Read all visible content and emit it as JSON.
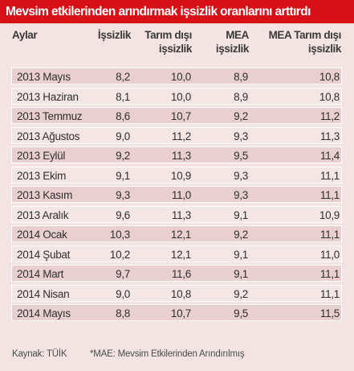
{
  "title": "Mevsim etkilerinden arındırmak işsizlik oranlarını arttırdı",
  "headers": {
    "month": "Aylar",
    "unemployment": [
      "İşsizlik"
    ],
    "nonfarm": [
      "Tarım dışı",
      "işsizlik"
    ],
    "mea": [
      "MEA",
      "işsizlik"
    ],
    "mea_nonfarm": [
      "MEA Tarım dışı",
      "işsizlik"
    ]
  },
  "rows": [
    {
      "month": "2013 Mayıs",
      "unemployment": "8,2",
      "nonfarm": "10,0",
      "mea": "8,9",
      "mea_nonfarm": "10,8"
    },
    {
      "month": "2013 Haziran",
      "unemployment": "8,1",
      "nonfarm": "10,0",
      "mea": "8,9",
      "mea_nonfarm": "10,8"
    },
    {
      "month": "2013 Temmuz",
      "unemployment": "8,6",
      "nonfarm": "10,7",
      "mea": "9,2",
      "mea_nonfarm": "11,2"
    },
    {
      "month": "2013 Ağustos",
      "unemployment": "9,0",
      "nonfarm": "11,2",
      "mea": "9,3",
      "mea_nonfarm": "11,3"
    },
    {
      "month": "2013 Eylül",
      "unemployment": "9,2",
      "nonfarm": "11,3",
      "mea": "9,5",
      "mea_nonfarm": "11,4"
    },
    {
      "month": "2013 Ekim",
      "unemployment": "9,1",
      "nonfarm": "10,9",
      "mea": "9,3",
      "mea_nonfarm": "11,1"
    },
    {
      "month": "2013 Kasım",
      "unemployment": "9,3",
      "nonfarm": "11,0",
      "mea": "9,3",
      "mea_nonfarm": "11,1"
    },
    {
      "month": "2013 Aralık",
      "unemployment": "9,6",
      "nonfarm": "11,3",
      "mea": "9,1",
      "mea_nonfarm": "10,9"
    },
    {
      "month": "2014 Ocak",
      "unemployment": "10,3",
      "nonfarm": "12,1",
      "mea": "9,2",
      "mea_nonfarm": "11,1"
    },
    {
      "month": "2014 Şubat",
      "unemployment": "10,2",
      "nonfarm": "12,1",
      "mea": "9,1",
      "mea_nonfarm": "11,0"
    },
    {
      "month": "2014 Mart",
      "unemployment": "9,7",
      "nonfarm": "11,6",
      "mea": "9,1",
      "mea_nonfarm": "11,1"
    },
    {
      "month": "2014 Nisan",
      "unemployment": "9,0",
      "nonfarm": "10,8",
      "mea": "9,2",
      "mea_nonfarm": "11,1"
    },
    {
      "month": "2014 Mayıs",
      "unemployment": "8,8",
      "nonfarm": "10,7",
      "mea": "9,5",
      "mea_nonfarm": "11,5"
    }
  ],
  "footer": {
    "source": "Kaynak: TÜİK",
    "note": "*MAE: Mevsim Etkilerinden Arındırılmış"
  },
  "colors": {
    "title_bg": "#d80f16",
    "panel_bg": "#f3e3e3",
    "row_dark": "#e9cfd0",
    "row_light": "#f5e6e6"
  }
}
